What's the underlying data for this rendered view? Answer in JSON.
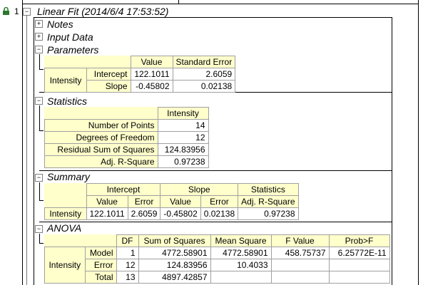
{
  "report": {
    "row_number": "1",
    "title": "Linear Fit (2014/6/4 17:53:52)",
    "nodes": {
      "notes": {
        "expander": "+",
        "label": "Notes"
      },
      "input_data": {
        "expander": "+",
        "label": "Input Data"
      },
      "parameters": {
        "expander": "−",
        "label": "Parameters"
      },
      "statistics": {
        "expander": "−",
        "label": "Statistics"
      },
      "summary": {
        "expander": "−",
        "label": "Summary"
      },
      "anova": {
        "expander": "−",
        "label": "ANOVA"
      }
    },
    "top_expander": "−"
  },
  "parameters": {
    "headers": [
      "Value",
      "Standard Error"
    ],
    "group": "Intensity",
    "rows": [
      {
        "label": "Intercept",
        "value": "122.1011",
        "error": "2.6059"
      },
      {
        "label": "Slope",
        "value": "-0.45802",
        "error": "0.02138"
      }
    ]
  },
  "statistics": {
    "header": "Intensity",
    "rows": [
      {
        "label": "Number of Points",
        "value": "14"
      },
      {
        "label": "Degrees of Freedom",
        "value": "12"
      },
      {
        "label": "Residual Sum of Squares",
        "value": "124.83956"
      },
      {
        "label": "Adj. R-Square",
        "value": "0.97238"
      }
    ]
  },
  "summary": {
    "groups": [
      "Intercept",
      "Slope",
      "Statistics"
    ],
    "subheaders": [
      "Value",
      "Error",
      "Value",
      "Error",
      "Adj. R-Square"
    ],
    "row": {
      "label": "Intensity",
      "cells": [
        "122.1011",
        "2.6059",
        "-0.45802",
        "0.02138",
        "0.97238"
      ]
    }
  },
  "anova": {
    "headers": [
      "DF",
      "Sum of Squares",
      "Mean Square",
      "F Value",
      "Prob>F"
    ],
    "group": "Intensity",
    "rows": [
      {
        "label": "Model",
        "df": "1",
        "ss": "4772.58901",
        "ms": "4772.58901",
        "f": "458.75737",
        "p": "6.25772E-11"
      },
      {
        "label": "Error",
        "df": "12",
        "ss": "124.83956",
        "ms": "10.4033",
        "f": "",
        "p": ""
      },
      {
        "label": "Total",
        "df": "13",
        "ss": "4897.42857",
        "ms": "",
        "f": "",
        "p": ""
      }
    ]
  }
}
